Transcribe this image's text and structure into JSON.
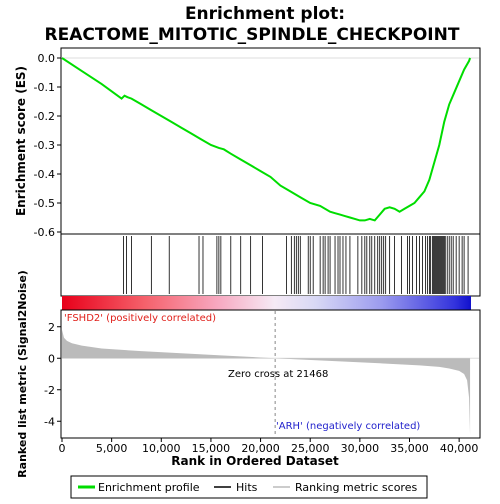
{
  "chart_data": {
    "type": "line",
    "title_line1": "Enrichment plot:",
    "title_line2": "REACTOME_MITOTIC_SPINDLE_CHECKPOINT",
    "es_panel": {
      "ylabel": "Enrichment score (ES)",
      "ylim": [
        -0.6,
        0.0
      ],
      "yticks": [
        "0.0",
        "-0.1",
        "-0.2",
        "-0.3",
        "-0.4",
        "-0.5",
        "-0.6"
      ],
      "ytick_values": [
        0.0,
        -0.1,
        -0.2,
        -0.3,
        -0.4,
        -0.5,
        -0.6
      ],
      "line_color": "#00dd00",
      "series": {
        "name": "Enrichment profile",
        "x": [
          0,
          2000,
          4000,
          6000,
          6300,
          6600,
          7000,
          7500,
          8000,
          9000,
          10000,
          11000,
          12000,
          13000,
          14000,
          15000,
          15800,
          16300,
          17000,
          18000,
          19000,
          20000,
          21000,
          22000,
          23000,
          24000,
          25000,
          26000,
          27000,
          27500,
          28000,
          28500,
          29000,
          29500,
          30000,
          30500,
          31000,
          31500,
          32000,
          32500,
          33000,
          33500,
          34000,
          34500,
          35000,
          35500,
          36000,
          36500,
          37000,
          37500,
          38000,
          38500,
          39000,
          39500,
          40000,
          40500,
          41000,
          41100
        ],
        "y": [
          0.0,
          -0.045,
          -0.09,
          -0.14,
          -0.13,
          -0.135,
          -0.14,
          -0.15,
          -0.16,
          -0.18,
          -0.2,
          -0.22,
          -0.24,
          -0.26,
          -0.28,
          -0.3,
          -0.31,
          -0.315,
          -0.33,
          -0.35,
          -0.37,
          -0.39,
          -0.41,
          -0.44,
          -0.46,
          -0.48,
          -0.5,
          -0.51,
          -0.53,
          -0.535,
          -0.54,
          -0.545,
          -0.55,
          -0.555,
          -0.56,
          -0.56,
          -0.555,
          -0.56,
          -0.54,
          -0.52,
          -0.515,
          -0.52,
          -0.53,
          -0.52,
          -0.51,
          -0.5,
          -0.48,
          -0.46,
          -0.42,
          -0.36,
          -0.3,
          -0.22,
          -0.16,
          -0.12,
          -0.08,
          -0.04,
          -0.01,
          0.0
        ]
      }
    },
    "hits": [
      6200,
      6500,
      7000,
      9000,
      10800,
      13800,
      14200,
      15600,
      15800,
      16000,
      17000,
      18000,
      19000,
      20200,
      22600,
      23100,
      23400,
      23600,
      23800,
      24000,
      24800,
      25000,
      25300,
      26000,
      26300,
      26500,
      26800,
      27000,
      27500,
      27800,
      28000,
      28300,
      28600,
      29000,
      29800,
      30200,
      30500,
      30700,
      31000,
      31200,
      31500,
      31800,
      32000,
      32200,
      32400,
      32600,
      33000,
      33500,
      34200,
      34800,
      35000,
      35300,
      35700,
      36000,
      36300,
      36600,
      36800,
      37000,
      37100,
      37300,
      37400,
      37500,
      37600,
      37700,
      37800,
      37900,
      38000,
      38100,
      38200,
      38300,
      38400,
      38500,
      38600,
      38800,
      39000,
      39200,
      39400,
      39700,
      40000,
      40300,
      40500,
      40900
    ],
    "metric_panel": {
      "ylabel": "Ranked list metric (Signal2Noise)",
      "ylim": [
        -5,
        3
      ],
      "yticks": [
        "2",
        "0",
        "-2",
        "-4"
      ],
      "ytick_values": [
        2,
        0,
        -2,
        -4
      ],
      "zero_cross_text": "Zero cross at 21468",
      "zero_cross_x": 21468,
      "pos_label": "'FSHD2' (positively correlated)",
      "neg_label": "'ARH' (negatively correlated)",
      "pos_label_color": "#e0201a",
      "neg_label_color": "#2222cc",
      "fill_color": "#bbbbbb",
      "curve": {
        "x": [
          0,
          200,
          500,
          1000,
          2000,
          4000,
          8000,
          12000,
          16000,
          20000,
          21468,
          24000,
          28000,
          32000,
          36000,
          38000,
          39000,
          40000,
          40500,
          40800,
          41000,
          41100
        ],
        "y": [
          1.8,
          1.3,
          1.1,
          0.95,
          0.8,
          0.62,
          0.45,
          0.32,
          0.18,
          0.05,
          0.0,
          -0.08,
          -0.2,
          -0.32,
          -0.45,
          -0.55,
          -0.65,
          -0.8,
          -1.0,
          -1.4,
          -2.5,
          -4.9
        ]
      }
    },
    "xaxis": {
      "xlabel": "Rank in Ordered Dataset",
      "xlim": [
        0,
        42000
      ],
      "xticks": [
        "0",
        "5,000",
        "10,000",
        "15,000",
        "20,000",
        "25,000",
        "30,000",
        "35,000",
        "40,000"
      ],
      "xtick_values": [
        0,
        5000,
        10000,
        15000,
        20000,
        25000,
        30000,
        35000,
        40000
      ]
    },
    "legend": {
      "placement": "bottom",
      "items": [
        "Enrichment profile",
        "Hits",
        "Ranking metric scores"
      ]
    }
  }
}
